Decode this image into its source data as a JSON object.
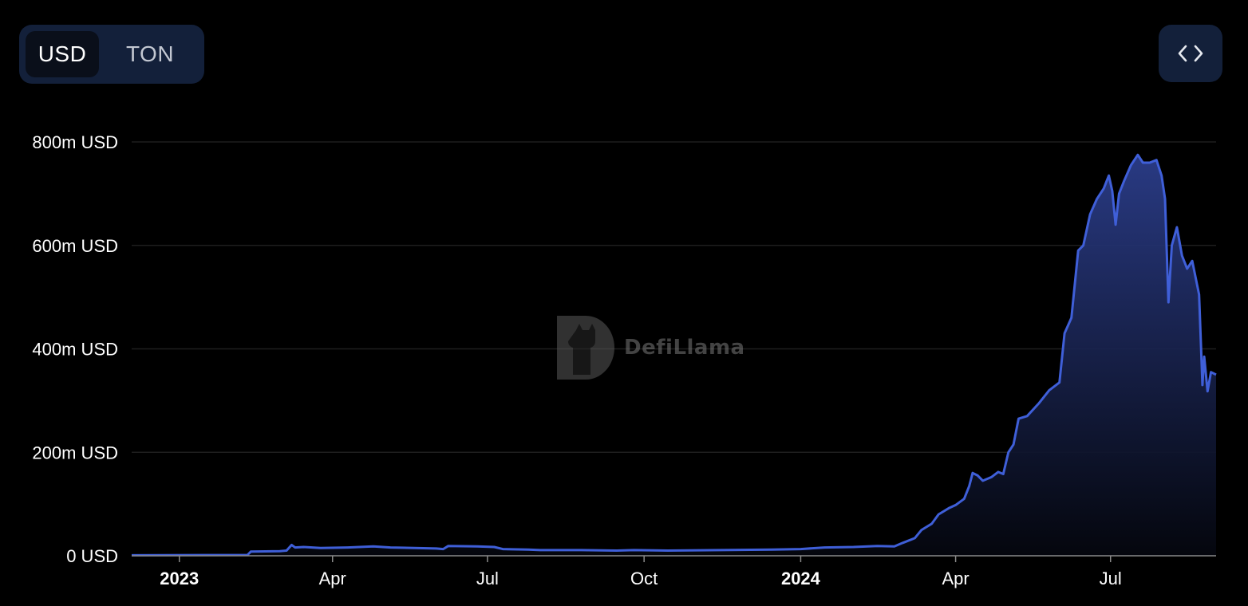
{
  "toggle": {
    "options": [
      "USD",
      "TON"
    ],
    "selected": "USD"
  },
  "embed_button": {
    "icon": "code-brackets-icon"
  },
  "watermark": {
    "text": "DefiLlama"
  },
  "colors": {
    "line": "#3f5fd8",
    "area_top": "#2b3d8a",
    "grid": "#1e1e1e",
    "background": "#000000"
  },
  "chart_data": {
    "type": "area",
    "yunit": "USD",
    "ylim": [
      0,
      800000000
    ],
    "y_ticks": [
      {
        "value": 0,
        "label": "0 USD"
      },
      {
        "value": 200000000,
        "label": "200m USD"
      },
      {
        "value": 400000000,
        "label": "400m USD"
      },
      {
        "value": 600000000,
        "label": "600m USD"
      },
      {
        "value": 800000000,
        "label": "800m USD"
      }
    ],
    "xlim": [
      "2022-12-04",
      "2024-09-01"
    ],
    "x_ticks": [
      {
        "date": "2023-01-01",
        "label": "2023",
        "bold": true
      },
      {
        "date": "2023-04-01",
        "label": "Apr",
        "bold": false
      },
      {
        "date": "2023-07-01",
        "label": "Jul",
        "bold": false
      },
      {
        "date": "2023-10-01",
        "label": "Oct",
        "bold": false
      },
      {
        "date": "2024-01-01",
        "label": "2024",
        "bold": true
      },
      {
        "date": "2024-04-01",
        "label": "Apr",
        "bold": false
      },
      {
        "date": "2024-07-01",
        "label": "Jul",
        "bold": false
      }
    ],
    "grid": true,
    "series": [
      {
        "points": [
          [
            "2022-12-04",
            1000000
          ],
          [
            "2023-02-10",
            1500000
          ],
          [
            "2023-02-12",
            8000000
          ],
          [
            "2023-03-01",
            9000000
          ],
          [
            "2023-03-05",
            10000000
          ],
          [
            "2023-03-08",
            21000000
          ],
          [
            "2023-03-10",
            16000000
          ],
          [
            "2023-03-15",
            17000000
          ],
          [
            "2023-03-25",
            15000000
          ],
          [
            "2023-04-10",
            16000000
          ],
          [
            "2023-04-25",
            18000000
          ],
          [
            "2023-05-05",
            16000000
          ],
          [
            "2023-06-01",
            14000000
          ],
          [
            "2023-06-05",
            13000000
          ],
          [
            "2023-06-08",
            19000000
          ],
          [
            "2023-06-25",
            18000000
          ],
          [
            "2023-07-05",
            17000000
          ],
          [
            "2023-07-10",
            13000000
          ],
          [
            "2023-07-25",
            12000000
          ],
          [
            "2023-08-01",
            11000000
          ],
          [
            "2023-08-25",
            11000000
          ],
          [
            "2023-09-15",
            10000000
          ],
          [
            "2023-09-25",
            11000000
          ],
          [
            "2023-10-15",
            10000000
          ],
          [
            "2023-11-15",
            11000000
          ],
          [
            "2023-12-15",
            12000000
          ],
          [
            "2024-01-01",
            13000000
          ],
          [
            "2024-01-15",
            16000000
          ],
          [
            "2024-02-01",
            17000000
          ],
          [
            "2024-02-15",
            19000000
          ],
          [
            "2024-02-25",
            18000000
          ],
          [
            "2024-03-01",
            25000000
          ],
          [
            "2024-03-08",
            34000000
          ],
          [
            "2024-03-12",
            50000000
          ],
          [
            "2024-03-18",
            62000000
          ],
          [
            "2024-03-22",
            80000000
          ],
          [
            "2024-03-28",
            92000000
          ],
          [
            "2024-04-01",
            98000000
          ],
          [
            "2024-04-06",
            110000000
          ],
          [
            "2024-04-09",
            135000000
          ],
          [
            "2024-04-11",
            160000000
          ],
          [
            "2024-04-14",
            155000000
          ],
          [
            "2024-04-17",
            145000000
          ],
          [
            "2024-04-22",
            152000000
          ],
          [
            "2024-04-26",
            162000000
          ],
          [
            "2024-04-29",
            158000000
          ],
          [
            "2024-05-02",
            200000000
          ],
          [
            "2024-05-05",
            215000000
          ],
          [
            "2024-05-08",
            265000000
          ],
          [
            "2024-05-13",
            270000000
          ],
          [
            "2024-05-20",
            295000000
          ],
          [
            "2024-05-26",
            320000000
          ],
          [
            "2024-06-01",
            335000000
          ],
          [
            "2024-06-04",
            430000000
          ],
          [
            "2024-06-08",
            460000000
          ],
          [
            "2024-06-12",
            590000000
          ],
          [
            "2024-06-15",
            600000000
          ],
          [
            "2024-06-19",
            660000000
          ],
          [
            "2024-06-23",
            690000000
          ],
          [
            "2024-06-27",
            710000000
          ],
          [
            "2024-06-30",
            735000000
          ],
          [
            "2024-07-02",
            705000000
          ],
          [
            "2024-07-04",
            640000000
          ],
          [
            "2024-07-06",
            700000000
          ],
          [
            "2024-07-09",
            725000000
          ],
          [
            "2024-07-13",
            755000000
          ],
          [
            "2024-07-17",
            775000000
          ],
          [
            "2024-07-20",
            760000000
          ],
          [
            "2024-07-24",
            760000000
          ],
          [
            "2024-07-28",
            765000000
          ],
          [
            "2024-07-31",
            735000000
          ],
          [
            "2024-08-02",
            690000000
          ],
          [
            "2024-08-04",
            490000000
          ],
          [
            "2024-08-06",
            600000000
          ],
          [
            "2024-08-09",
            635000000
          ],
          [
            "2024-08-12",
            580000000
          ],
          [
            "2024-08-15",
            555000000
          ],
          [
            "2024-08-18",
            570000000
          ],
          [
            "2024-08-22",
            505000000
          ],
          [
            "2024-08-24",
            330000000
          ],
          [
            "2024-08-25",
            385000000
          ],
          [
            "2024-08-27",
            318000000
          ],
          [
            "2024-08-29",
            355000000
          ],
          [
            "2024-09-01",
            350000000
          ]
        ]
      }
    ]
  }
}
